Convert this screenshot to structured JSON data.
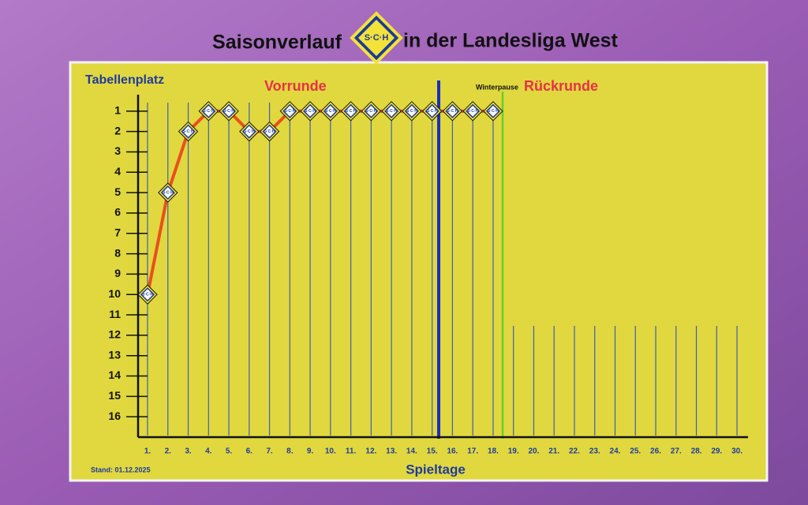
{
  "chart_data": {
    "type": "line",
    "title": "Saisonverlauf",
    "title_suffix": "in der Landesliga West",
    "logo": "S·C·H",
    "y_label": "Tabellenplatz",
    "x_label": "Spieltage",
    "annotations": {
      "first_half": "Vorrunde",
      "break": "Winterpause",
      "second_half": "Rückrunde",
      "status": "Stand: 01.12.2025"
    },
    "categories": [
      "1.",
      "2.",
      "3.",
      "4.",
      "5.",
      "6.",
      "7.",
      "8.",
      "9.",
      "10.",
      "11.",
      "12.",
      "13.",
      "14.",
      "15.",
      "16.",
      "17.",
      "18.",
      "19.",
      "20.",
      "21.",
      "22.",
      "23.",
      "24.",
      "25.",
      "26.",
      "27.",
      "28.",
      "29.",
      "30."
    ],
    "series": [
      {
        "name": "SCH",
        "color": "#e8501e",
        "values": [
          10,
          5,
          2,
          1,
          1,
          2,
          2,
          1,
          1,
          1,
          1,
          1,
          1,
          1,
          1,
          1,
          1,
          1,
          null,
          null,
          null,
          null,
          null,
          null,
          null,
          null,
          null,
          null,
          null,
          null
        ]
      }
    ],
    "ylim": [
      17,
      0
    ],
    "yticks": [
      1,
      2,
      3,
      4,
      5,
      6,
      7,
      8,
      9,
      10,
      11,
      12,
      13,
      14,
      15,
      16
    ]
  }
}
